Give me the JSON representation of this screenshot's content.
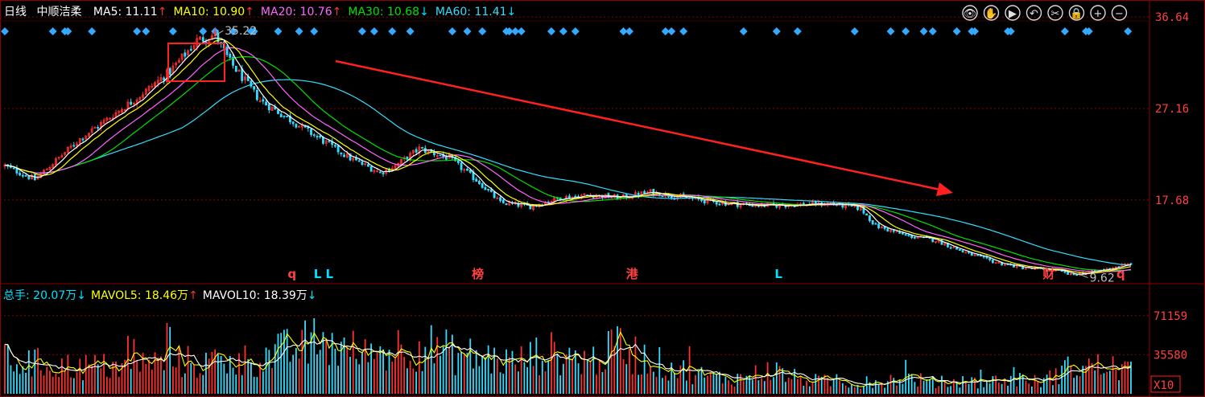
{
  "chart_data": {
    "type": "candlestick",
    "period": "日线",
    "stock_name": "中顺洁柔",
    "ma_legend": [
      {
        "label": "MA5:",
        "value": "11.11",
        "arrow": "↑",
        "color": "#ffffff",
        "arrow_color": "#ff3030"
      },
      {
        "label": "MA10:",
        "value": "10.90",
        "arrow": "↑",
        "color": "#ffff00",
        "arrow_color": "#ff3030"
      },
      {
        "label": "MA20:",
        "value": "10.76",
        "arrow": "↑",
        "color": "#ff66ff",
        "arrow_color": "#ff3030"
      },
      {
        "label": "MA30:",
        "value": "10.68",
        "arrow": "↓",
        "color": "#00e000",
        "arrow_color": "#00e0ff"
      },
      {
        "label": "MA60:",
        "value": "11.41",
        "arrow": "↓",
        "color": "#33ddff",
        "arrow_color": "#00e0ff"
      }
    ],
    "price_axis": {
      "ticks": [
        "36.64",
        "27.16",
        "17.68"
      ],
      "tick_values": [
        36.64,
        27.16,
        17.68
      ],
      "ylim": [
        9.0,
        38.4
      ]
    },
    "annotations": {
      "high_label": "35.22",
      "high_value": 35.22,
      "low_label": "9.62",
      "low_value": 9.62
    },
    "bottom_markers": [
      {
        "text": "q",
        "color": "#ff4040",
        "pos": 0.255
      },
      {
        "text": "L L",
        "color": "#00e0ff",
        "pos": 0.283
      },
      {
        "text": "榜",
        "color": "#ff4040",
        "pos": 0.42
      },
      {
        "text": "港",
        "color": "#ff4040",
        "pos": 0.557
      },
      {
        "text": "L",
        "color": "#00e0ff",
        "pos": 0.687
      },
      {
        "text": "财",
        "color": "#ff4040",
        "pos": 0.927
      },
      {
        "text": "q",
        "color": "#ff4040",
        "pos": 0.991
      }
    ],
    "volume": {
      "legend": [
        {
          "label": "总手:",
          "value": "20.07万",
          "arrow": "↓",
          "color": "#00e0ff",
          "arrow_color": "#00e0ff"
        },
        {
          "label": "MAVOL5:",
          "value": "18.46万",
          "arrow": "↑",
          "color": "#ffff00",
          "arrow_color": "#ff3030"
        },
        {
          "label": "MAVOL10:",
          "value": "18.39万",
          "arrow": "↓",
          "color": "#ffffff",
          "arrow_color": "#00e0ff"
        }
      ],
      "axis_ticks": [
        "71159",
        "35580"
      ],
      "tick_values": [
        71159,
        35580
      ],
      "unit": "X10",
      "ylim": [
        0,
        82000
      ]
    },
    "colors": {
      "up": "#ff3030",
      "down": "#33ddff",
      "ma5": "#ffffff",
      "ma10": "#ffff00",
      "ma20": "#ff66ff",
      "ma30": "#00e000",
      "ma60": "#33ddff",
      "grid": "#8b0000",
      "axis_text": "#ff4040",
      "diamond": "#33aaff"
    },
    "price_keypoints": [
      [
        0,
        21.2
      ],
      [
        10,
        19.8
      ],
      [
        25,
        24.0
      ],
      [
        45,
        28.5
      ],
      [
        55,
        31.0
      ],
      [
        64,
        34.2
      ],
      [
        70,
        34.8
      ],
      [
        75,
        32.0
      ],
      [
        85,
        28.0
      ],
      [
        100,
        25.0
      ],
      [
        115,
        22.0
      ],
      [
        125,
        20.5
      ],
      [
        130,
        21.2
      ],
      [
        138,
        23.0
      ],
      [
        148,
        22.0
      ],
      [
        158,
        19.5
      ],
      [
        165,
        17.4
      ],
      [
        175,
        17.0
      ],
      [
        185,
        17.9
      ],
      [
        195,
        18.2
      ],
      [
        205,
        17.9
      ],
      [
        215,
        18.5
      ],
      [
        225,
        18.0
      ],
      [
        235,
        17.5
      ],
      [
        245,
        17.2
      ],
      [
        255,
        17.1
      ],
      [
        265,
        17.2
      ],
      [
        275,
        17.3
      ],
      [
        285,
        16.8
      ],
      [
        290,
        15.0
      ],
      [
        300,
        14.0
      ],
      [
        310,
        13.5
      ],
      [
        320,
        12.2
      ],
      [
        330,
        11.2
      ],
      [
        340,
        10.6
      ],
      [
        350,
        10.4
      ],
      [
        355,
        9.9
      ],
      [
        365,
        10.4
      ],
      [
        375,
        11.1
      ]
    ],
    "volume_keypoints": [
      [
        0,
        30000
      ],
      [
        20,
        25000
      ],
      [
        40,
        24000
      ],
      [
        55,
        30000
      ],
      [
        70,
        27000
      ],
      [
        85,
        32000
      ],
      [
        105,
        48000
      ],
      [
        120,
        35000
      ],
      [
        130,
        42000
      ],
      [
        140,
        44000
      ],
      [
        150,
        36000
      ],
      [
        160,
        33000
      ],
      [
        170,
        28000
      ],
      [
        180,
        38000
      ],
      [
        195,
        30000
      ],
      [
        205,
        42000
      ],
      [
        215,
        30000
      ],
      [
        225,
        22000
      ],
      [
        235,
        15000
      ],
      [
        245,
        14000
      ],
      [
        255,
        22000
      ],
      [
        265,
        13000
      ],
      [
        275,
        11000
      ],
      [
        285,
        9000
      ],
      [
        300,
        15000
      ],
      [
        310,
        10000
      ],
      [
        325,
        11000
      ],
      [
        335,
        13000
      ],
      [
        345,
        11000
      ],
      [
        355,
        24000
      ],
      [
        365,
        25000
      ],
      [
        375,
        22000
      ]
    ]
  },
  "toolbar": [
    {
      "icon": "eye-icon",
      "glyph": "👁"
    },
    {
      "icon": "hand-icon",
      "glyph": "✋"
    },
    {
      "icon": "play-icon",
      "glyph": "▶"
    },
    {
      "icon": "undo-icon",
      "glyph": "↶"
    },
    {
      "icon": "scissors-icon",
      "glyph": "✂"
    },
    {
      "icon": "lock-icon",
      "glyph": "🔒"
    },
    {
      "icon": "zoom-in-icon",
      "glyph": "+"
    },
    {
      "icon": "zoom-out-icon",
      "glyph": "−"
    }
  ]
}
